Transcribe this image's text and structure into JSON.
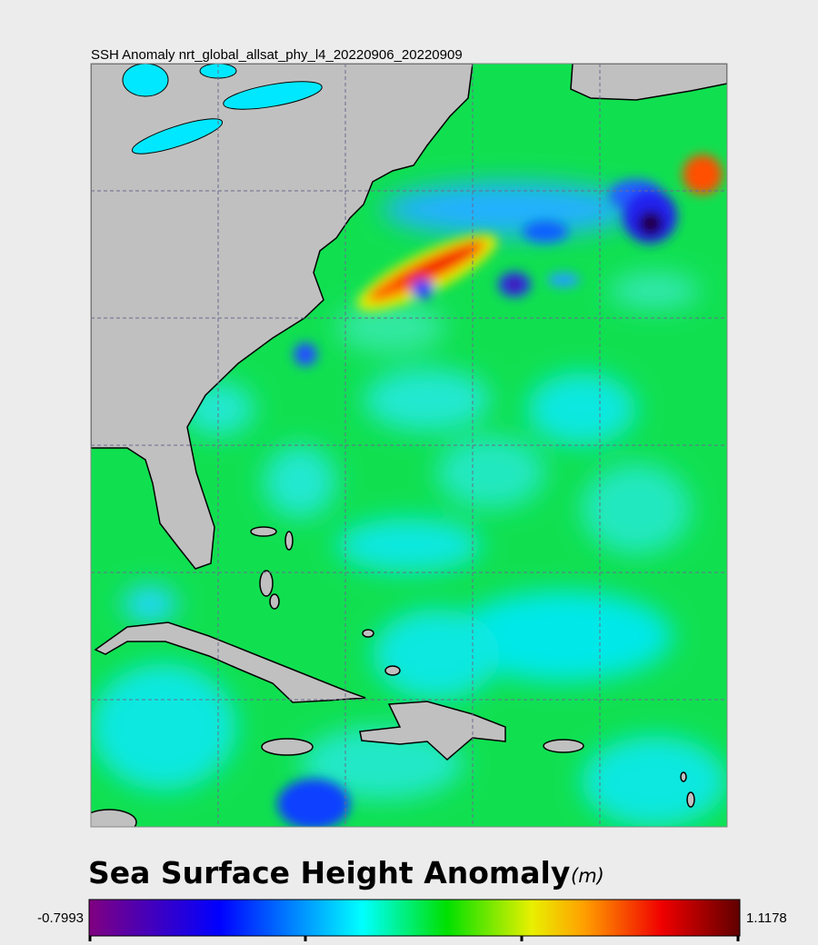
{
  "map": {
    "title": "SSH Anomaly nrt_global_allsat_phy_l4_20220906_20220909"
  },
  "colorbar": {
    "title": "Sea Surface Height Anomaly",
    "unit": "(m)",
    "min": -0.7993,
    "max": 1.1178
  }
}
